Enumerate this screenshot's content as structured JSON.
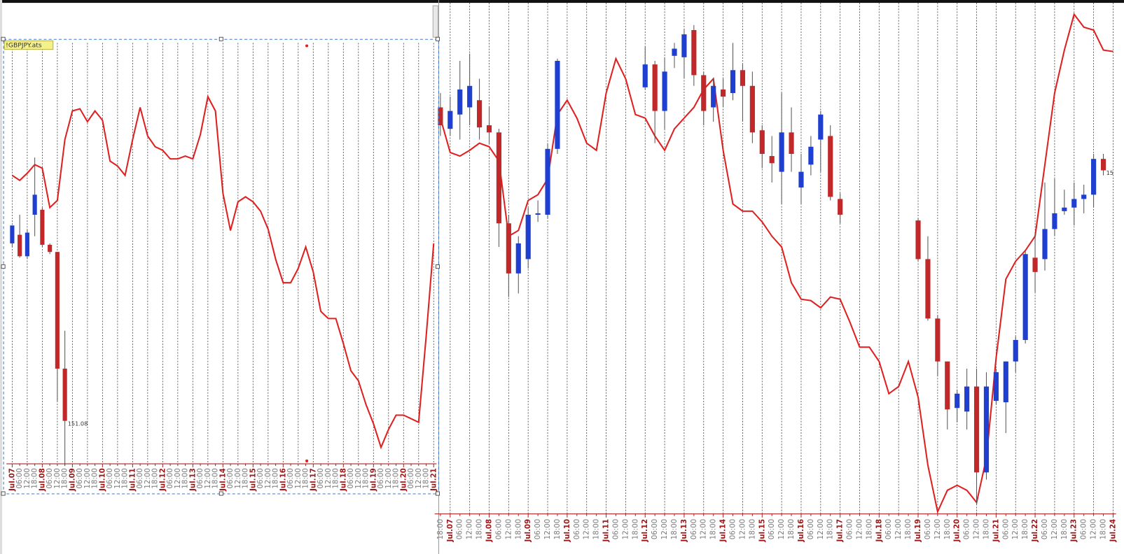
{
  "chart_data": [
    {
      "type": "candlestick",
      "symbol": "!GBPJPY.ats",
      "last_price_label": "151.08",
      "up_color": "#1f3fd0",
      "down_color": "#c0282a",
      "line_color": "#e02020",
      "grid": true,
      "ylim": [
        0,
        600
      ],
      "categories": [
        "Jul.07",
        "06:00",
        "12:00",
        "18:00",
        "Jul.08",
        "06:00",
        "12:00",
        "18:00",
        "Jul.09",
        "06:00",
        "12:00",
        "18:00",
        "Jul.10",
        "06:00",
        "12:00",
        "18:00",
        "Jul.11",
        "06:00",
        "12:00",
        "18:00",
        "Jul.12",
        "06:00",
        "12:00",
        "18:00",
        "Jul.13",
        "06:00",
        "12:00",
        "18:00",
        "Jul.14",
        "06:00",
        "12:00",
        "18:00",
        "Jul.15",
        "06:00",
        "12:00",
        "18:00",
        "Jul.16",
        "06:00",
        "12:00",
        "18:00",
        "Jul.17",
        "06:00",
        "12:00",
        "18:00",
        "Jul.18",
        "06:00",
        "12:00",
        "18:00",
        "Jul.19",
        "06:00",
        "12:00",
        "18:00",
        "Jul.20",
        "06:00",
        "12:00",
        "18:00",
        "Jul.21"
      ],
      "open": [
        310,
        322,
        292,
        350,
        357,
        308,
        298,
        135,
        null,
        null,
        null,
        null,
        null,
        null,
        null,
        null,
        null,
        null,
        null,
        null,
        null,
        null,
        null,
        null,
        null,
        null,
        null,
        null,
        null,
        null,
        null,
        null,
        null,
        null,
        null,
        null,
        null,
        null,
        null,
        null,
        null,
        null,
        null,
        null,
        null,
        null,
        null,
        null,
        null,
        null,
        null,
        null,
        null,
        null,
        null,
        null,
        null
      ],
      "high": [
        335,
        350,
        330,
        430,
        360,
        310,
        298,
        188,
        null,
        null,
        null,
        null,
        null,
        null,
        null,
        null,
        null,
        null,
        null,
        null,
        null,
        null,
        null,
        null,
        null,
        null,
        null,
        null,
        null,
        null,
        null,
        null,
        null,
        null,
        null,
        null,
        null,
        null,
        null,
        null,
        null,
        null,
        null,
        null,
        null,
        null,
        null,
        null,
        null,
        null,
        null,
        null,
        null,
        null,
        null,
        null,
        null
      ],
      "low": [
        305,
        290,
        288,
        320,
        305,
        295,
        90,
        0,
        null,
        null,
        null,
        null,
        null,
        null,
        null,
        null,
        null,
        null,
        null,
        null,
        null,
        null,
        null,
        null,
        null,
        null,
        null,
        null,
        null,
        null,
        null,
        null,
        null,
        null,
        null,
        null,
        null,
        null,
        null,
        null,
        null,
        null,
        null,
        null,
        null,
        null,
        null,
        null,
        null,
        null,
        null,
        null,
        null,
        null,
        null,
        null,
        null
      ],
      "close": [
        335,
        292,
        325,
        378,
        308,
        298,
        135,
        62,
        null,
        null,
        null,
        null,
        null,
        null,
        null,
        null,
        null,
        null,
        null,
        null,
        null,
        null,
        null,
        null,
        null,
        null,
        null,
        null,
        null,
        null,
        null,
        null,
        null,
        null,
        null,
        null,
        null,
        null,
        null,
        null,
        null,
        null,
        null,
        null,
        null,
        null,
        null,
        null,
        null,
        null,
        null,
        null,
        null,
        null,
        null,
        null,
        null
      ],
      "line": [
        405,
        398,
        408,
        420,
        415,
        360,
        370,
        455,
        495,
        498,
        480,
        495,
        482,
        425,
        418,
        405,
        455,
        500,
        460,
        445,
        440,
        428,
        428,
        432,
        428,
        462,
        515,
        495,
        380,
        328,
        368,
        375,
        368,
        355,
        330,
        288,
        255,
        255,
        275,
        305,
        270,
        215,
        205,
        205,
        170,
        132,
        118,
        85,
        58,
        25,
        50,
        70,
        70,
        65,
        60,
        180,
        310
      ]
    },
    {
      "type": "candlestick",
      "last_price_label": "15",
      "up_color": "#1f3fd0",
      "down_color": "#c0282a",
      "line_color": "#e02020",
      "grid": true,
      "ylim": [
        0,
        720
      ],
      "categories": [
        "18:00",
        "Jul.07",
        "06:00",
        "12:00",
        "18:00",
        "Jul.08",
        "06:00",
        "12:00",
        "18:00",
        "Jul.09",
        "06:00",
        "12:00",
        "18:00",
        "Jul.10",
        "06:00",
        "12:00",
        "18:00",
        "Jul.11",
        "06:00",
        "12:00",
        "18:00",
        "Jul.12",
        "06:00",
        "12:00",
        "18:00",
        "Jul.13",
        "06:00",
        "12:00",
        "18:00",
        "Jul.14",
        "06:00",
        "12:00",
        "18:00",
        "Jul.15",
        "06:00",
        "12:00",
        "18:00",
        "Jul.16",
        "06:00",
        "12:00",
        "18:00",
        "Jul.17",
        "06:00",
        "12:00",
        "18:00",
        "Jul.18",
        "06:00",
        "12:00",
        "18:00",
        "Jul.19",
        "06:00",
        "12:00",
        "18:00",
        "Jul.20",
        "06:00",
        "12:00",
        "18:00",
        "Jul.21",
        "06:00",
        "12:00",
        "18:00",
        "Jul.22",
        "06:00",
        "12:00",
        "18:00",
        "Jul.23",
        "06:00",
        "12:00",
        "18:00",
        "Jul.24"
      ],
      "open": [
        570,
        540,
        560,
        570,
        580,
        545,
        535,
        408,
        338,
        358,
        420,
        420,
        512,
        null,
        null,
        null,
        null,
        null,
        null,
        null,
        null,
        598,
        630,
        565,
        642,
        640,
        678,
        615,
        570,
        595,
        590,
        622,
        600,
        538,
        502,
        480,
        535,
        458,
        490,
        525,
        530,
        442,
        null,
        null,
        null,
        null,
        null,
        null,
        null,
        412,
        358,
        275,
        215,
        150,
        145,
        180,
        60,
        160,
        158,
        215,
        245,
        360,
        358,
        400,
        425,
        430,
        442,
        448,
        498,
        null
      ],
      "high": [
        590,
        585,
        635,
        645,
        610,
        570,
        540,
        420,
        390,
        430,
        440,
        520,
        638,
        null,
        null,
        null,
        null,
        null,
        null,
        null,
        null,
        655,
        635,
        640,
        660,
        680,
        685,
        620,
        610,
        610,
        660,
        630,
        620,
        545,
        530,
        590,
        570,
        505,
        530,
        565,
        545,
        450,
        null,
        null,
        null,
        null,
        null,
        null,
        null,
        415,
        390,
        280,
        215,
        175,
        205,
        205,
        200,
        205,
        215,
        250,
        370,
        395,
        465,
        470,
        455,
        465,
        462,
        505,
        505,
        null
      ],
      "low": [
        530,
        530,
        525,
        545,
        525,
        520,
        375,
        305,
        310,
        345,
        410,
        415,
        505,
        null,
        null,
        null,
        null,
        null,
        null,
        null,
        null,
        595,
        520,
        540,
        625,
        610,
        600,
        545,
        550,
        570,
        580,
        550,
        520,
        485,
        465,
        435,
        480,
        435,
        475,
        480,
        440,
        408,
        null,
        null,
        null,
        null,
        null,
        null,
        null,
        355,
        272,
        195,
        120,
        130,
        120,
        15,
        50,
        155,
        115,
        200,
        240,
        312,
        342,
        390,
        420,
        405,
        422,
        430,
        475,
        null
      ],
      "close": [
        545,
        565,
        595,
        600,
        542,
        535,
        408,
        338,
        380,
        420,
        422,
        512,
        635,
        null,
        null,
        null,
        null,
        null,
        null,
        null,
        null,
        630,
        565,
        620,
        652,
        672,
        615,
        565,
        600,
        585,
        622,
        600,
        535,
        505,
        492,
        535,
        505,
        480,
        515,
        560,
        445,
        420,
        null,
        null,
        null,
        null,
        null,
        null,
        null,
        358,
        275,
        215,
        148,
        170,
        180,
        60,
        180,
        200,
        215,
        245,
        365,
        340,
        400,
        422,
        430,
        442,
        448,
        498,
        482,
        null
      ],
      "line": [
        555,
        507,
        502,
        510,
        520,
        515,
        495,
        390,
        398,
        440,
        448,
        470,
        560,
        580,
        555,
        520,
        510,
        590,
        638,
        610,
        560,
        555,
        530,
        510,
        540,
        555,
        570,
        595,
        610,
        510,
        435,
        425,
        425,
        410,
        390,
        375,
        325,
        302,
        300,
        290,
        305,
        302,
        270,
        235,
        235,
        215,
        170,
        180,
        215,
        165,
        70,
        5,
        35,
        42,
        35,
        18,
        80,
        220,
        330,
        355,
        370,
        390,
        490,
        590,
        650,
        700,
        682,
        678,
        650,
        648
      ]
    }
  ]
}
